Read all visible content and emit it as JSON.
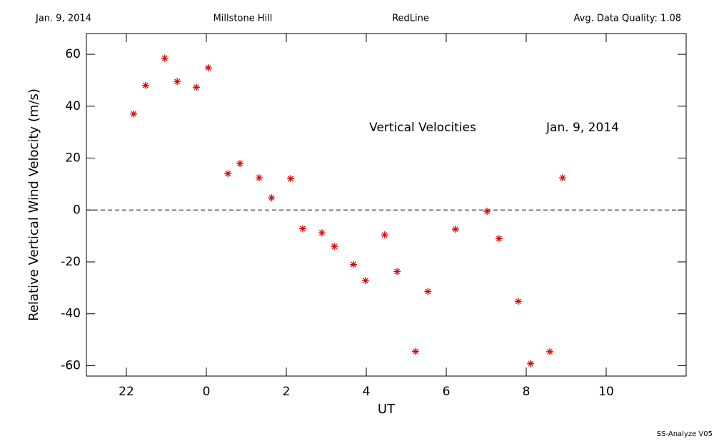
{
  "chart_data": {
    "type": "scatter",
    "header": [
      "Jan. 9, 2014",
      "Millstone Hill",
      "RedLine",
      "Avg. Data Quality: 1.08"
    ],
    "annotations": [
      "Vertical Velocities",
      "Jan. 9, 2014"
    ],
    "footer": "SS-Analyze V05",
    "xlabel": "UT",
    "ylabel": "Relative Vertical Wind Velocity (m/s)",
    "xlim": [
      -3,
      12
    ],
    "ylim": [
      -64,
      68
    ],
    "xticks": [
      {
        "value": -2,
        "label": "22"
      },
      0,
      2,
      4,
      6,
      8,
      10
    ],
    "yticks": [
      -60,
      -40,
      -20,
      0,
      20,
      40,
      60
    ],
    "zero_line": true,
    "series": [
      {
        "color": "#e00000",
        "x": [
          -1.82,
          -1.52,
          -1.04,
          -0.73,
          -0.25,
          0.05,
          0.54,
          0.84,
          1.32,
          1.63,
          2.11,
          2.41,
          2.89,
          3.2,
          3.68,
          3.98,
          4.46,
          4.77,
          5.23,
          5.54,
          6.23,
          7.02,
          7.32,
          7.8,
          8.11,
          8.59,
          8.91
        ],
        "values": [
          37,
          48,
          58.5,
          49.5,
          47.3,
          54.8,
          14,
          17.9,
          12.4,
          4.7,
          12.1,
          -7.2,
          -8.8,
          -14,
          -21,
          -27.2,
          -9.6,
          -23.7,
          -54.5,
          -31.4,
          -7.4,
          -0.5,
          -11,
          -35.2,
          -59.2,
          -54.6,
          12.4
        ]
      }
    ]
  }
}
